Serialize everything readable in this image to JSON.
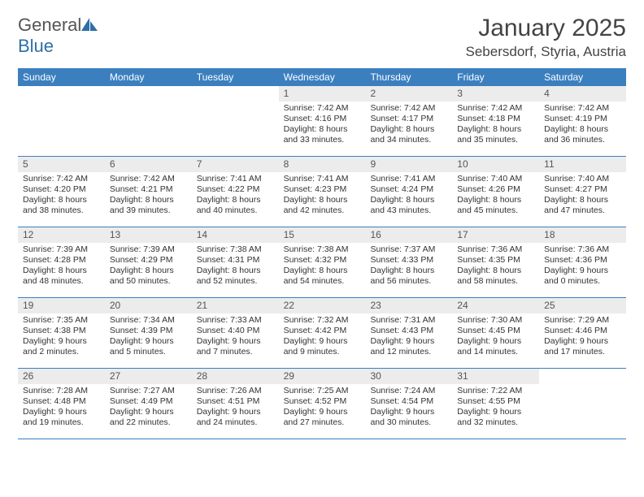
{
  "logo": {
    "text1": "General",
    "text2": "Blue"
  },
  "title": "January 2025",
  "location": "Sebersdorf, Styria, Austria",
  "colors": {
    "header_bg": "#3b7fbf",
    "header_text": "#ffffff",
    "daynum_bg": "#ececec",
    "border": "#3b7fbf",
    "logo_gray": "#555555",
    "logo_blue": "#2f6fa8"
  },
  "day_names": [
    "Sunday",
    "Monday",
    "Tuesday",
    "Wednesday",
    "Thursday",
    "Friday",
    "Saturday"
  ],
  "weeks": [
    [
      {
        "n": "",
        "lines": []
      },
      {
        "n": "",
        "lines": []
      },
      {
        "n": "",
        "lines": []
      },
      {
        "n": "1",
        "lines": [
          "Sunrise: 7:42 AM",
          "Sunset: 4:16 PM",
          "Daylight: 8 hours",
          "and 33 minutes."
        ]
      },
      {
        "n": "2",
        "lines": [
          "Sunrise: 7:42 AM",
          "Sunset: 4:17 PM",
          "Daylight: 8 hours",
          "and 34 minutes."
        ]
      },
      {
        "n": "3",
        "lines": [
          "Sunrise: 7:42 AM",
          "Sunset: 4:18 PM",
          "Daylight: 8 hours",
          "and 35 minutes."
        ]
      },
      {
        "n": "4",
        "lines": [
          "Sunrise: 7:42 AM",
          "Sunset: 4:19 PM",
          "Daylight: 8 hours",
          "and 36 minutes."
        ]
      }
    ],
    [
      {
        "n": "5",
        "lines": [
          "Sunrise: 7:42 AM",
          "Sunset: 4:20 PM",
          "Daylight: 8 hours",
          "and 38 minutes."
        ]
      },
      {
        "n": "6",
        "lines": [
          "Sunrise: 7:42 AM",
          "Sunset: 4:21 PM",
          "Daylight: 8 hours",
          "and 39 minutes."
        ]
      },
      {
        "n": "7",
        "lines": [
          "Sunrise: 7:41 AM",
          "Sunset: 4:22 PM",
          "Daylight: 8 hours",
          "and 40 minutes."
        ]
      },
      {
        "n": "8",
        "lines": [
          "Sunrise: 7:41 AM",
          "Sunset: 4:23 PM",
          "Daylight: 8 hours",
          "and 42 minutes."
        ]
      },
      {
        "n": "9",
        "lines": [
          "Sunrise: 7:41 AM",
          "Sunset: 4:24 PM",
          "Daylight: 8 hours",
          "and 43 minutes."
        ]
      },
      {
        "n": "10",
        "lines": [
          "Sunrise: 7:40 AM",
          "Sunset: 4:26 PM",
          "Daylight: 8 hours",
          "and 45 minutes."
        ]
      },
      {
        "n": "11",
        "lines": [
          "Sunrise: 7:40 AM",
          "Sunset: 4:27 PM",
          "Daylight: 8 hours",
          "and 47 minutes."
        ]
      }
    ],
    [
      {
        "n": "12",
        "lines": [
          "Sunrise: 7:39 AM",
          "Sunset: 4:28 PM",
          "Daylight: 8 hours",
          "and 48 minutes."
        ]
      },
      {
        "n": "13",
        "lines": [
          "Sunrise: 7:39 AM",
          "Sunset: 4:29 PM",
          "Daylight: 8 hours",
          "and 50 minutes."
        ]
      },
      {
        "n": "14",
        "lines": [
          "Sunrise: 7:38 AM",
          "Sunset: 4:31 PM",
          "Daylight: 8 hours",
          "and 52 minutes."
        ]
      },
      {
        "n": "15",
        "lines": [
          "Sunrise: 7:38 AM",
          "Sunset: 4:32 PM",
          "Daylight: 8 hours",
          "and 54 minutes."
        ]
      },
      {
        "n": "16",
        "lines": [
          "Sunrise: 7:37 AM",
          "Sunset: 4:33 PM",
          "Daylight: 8 hours",
          "and 56 minutes."
        ]
      },
      {
        "n": "17",
        "lines": [
          "Sunrise: 7:36 AM",
          "Sunset: 4:35 PM",
          "Daylight: 8 hours",
          "and 58 minutes."
        ]
      },
      {
        "n": "18",
        "lines": [
          "Sunrise: 7:36 AM",
          "Sunset: 4:36 PM",
          "Daylight: 9 hours",
          "and 0 minutes."
        ]
      }
    ],
    [
      {
        "n": "19",
        "lines": [
          "Sunrise: 7:35 AM",
          "Sunset: 4:38 PM",
          "Daylight: 9 hours",
          "and 2 minutes."
        ]
      },
      {
        "n": "20",
        "lines": [
          "Sunrise: 7:34 AM",
          "Sunset: 4:39 PM",
          "Daylight: 9 hours",
          "and 5 minutes."
        ]
      },
      {
        "n": "21",
        "lines": [
          "Sunrise: 7:33 AM",
          "Sunset: 4:40 PM",
          "Daylight: 9 hours",
          "and 7 minutes."
        ]
      },
      {
        "n": "22",
        "lines": [
          "Sunrise: 7:32 AM",
          "Sunset: 4:42 PM",
          "Daylight: 9 hours",
          "and 9 minutes."
        ]
      },
      {
        "n": "23",
        "lines": [
          "Sunrise: 7:31 AM",
          "Sunset: 4:43 PM",
          "Daylight: 9 hours",
          "and 12 minutes."
        ]
      },
      {
        "n": "24",
        "lines": [
          "Sunrise: 7:30 AM",
          "Sunset: 4:45 PM",
          "Daylight: 9 hours",
          "and 14 minutes."
        ]
      },
      {
        "n": "25",
        "lines": [
          "Sunrise: 7:29 AM",
          "Sunset: 4:46 PM",
          "Daylight: 9 hours",
          "and 17 minutes."
        ]
      }
    ],
    [
      {
        "n": "26",
        "lines": [
          "Sunrise: 7:28 AM",
          "Sunset: 4:48 PM",
          "Daylight: 9 hours",
          "and 19 minutes."
        ]
      },
      {
        "n": "27",
        "lines": [
          "Sunrise: 7:27 AM",
          "Sunset: 4:49 PM",
          "Daylight: 9 hours",
          "and 22 minutes."
        ]
      },
      {
        "n": "28",
        "lines": [
          "Sunrise: 7:26 AM",
          "Sunset: 4:51 PM",
          "Daylight: 9 hours",
          "and 24 minutes."
        ]
      },
      {
        "n": "29",
        "lines": [
          "Sunrise: 7:25 AM",
          "Sunset: 4:52 PM",
          "Daylight: 9 hours",
          "and 27 minutes."
        ]
      },
      {
        "n": "30",
        "lines": [
          "Sunrise: 7:24 AM",
          "Sunset: 4:54 PM",
          "Daylight: 9 hours",
          "and 30 minutes."
        ]
      },
      {
        "n": "31",
        "lines": [
          "Sunrise: 7:22 AM",
          "Sunset: 4:55 PM",
          "Daylight: 9 hours",
          "and 32 minutes."
        ]
      },
      {
        "n": "",
        "lines": []
      }
    ]
  ]
}
